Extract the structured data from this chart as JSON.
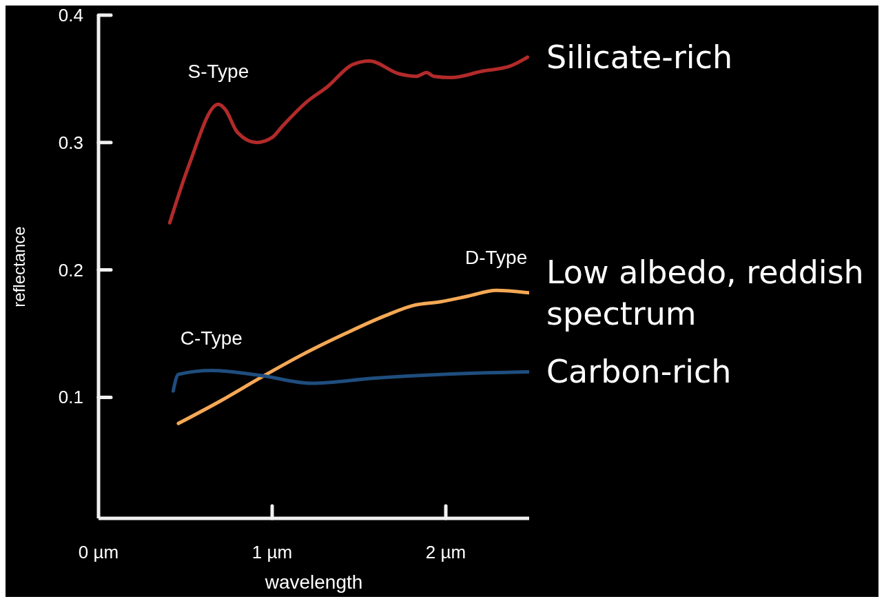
{
  "chart_data": {
    "type": "line",
    "xlabel": "wavelength",
    "ylabel": "reflectance",
    "xlim": [
      0,
      2.48
    ],
    "xticks": [
      {
        "value": 0,
        "label": "0 µm"
      },
      {
        "value": 1,
        "label": "1 µm"
      },
      {
        "value": 2,
        "label": "2 µm"
      }
    ],
    "ylim": [
      0.005,
      0.4
    ],
    "yticks": [
      0.1,
      0.2,
      0.3,
      0.4
    ],
    "marker": "none",
    "line_style": "solid",
    "series": [
      {
        "name": "S-Type",
        "color": "#b22a2a",
        "x": [
          0.41,
          0.52,
          0.69,
          0.73,
          0.8,
          0.91,
          1.0,
          1.06,
          1.2,
          1.32,
          1.46,
          1.56,
          1.73,
          1.83,
          1.89,
          1.93,
          2.03,
          2.21,
          2.37,
          2.47
        ],
        "values": [
          0.237,
          0.282,
          0.33,
          0.326,
          0.308,
          0.3,
          0.304,
          0.313,
          0.332,
          0.344,
          0.361,
          0.364,
          0.354,
          0.352,
          0.355,
          0.352,
          0.351,
          0.356,
          0.36,
          0.367
        ]
      },
      {
        "name": "D-Type",
        "color": "#f5a855",
        "x": [
          0.46,
          0.7,
          0.94,
          1.18,
          1.42,
          1.65,
          1.81,
          1.97,
          2.13,
          2.29,
          2.48
        ],
        "values": [
          0.0795,
          0.097,
          0.116,
          0.134,
          0.15,
          0.164,
          0.172,
          0.175,
          0.1795,
          0.184,
          0.182
        ]
      },
      {
        "name": "C-Type",
        "color": "#1f4e7e",
        "x": [
          0.43,
          0.46,
          0.65,
          0.94,
          1.23,
          1.58,
          1.97,
          2.48
        ],
        "values": [
          0.105,
          0.118,
          0.121,
          0.117,
          0.111,
          0.115,
          0.118,
          0.12
        ]
      }
    ],
    "annotations": [
      "Silicate-rich",
      "Low albedo, reddish spectrum",
      "Carbon-rich"
    ]
  }
}
